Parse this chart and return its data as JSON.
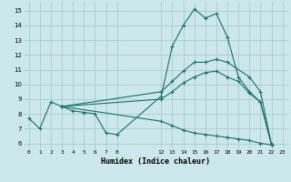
{
  "xlabel": "Humidex (Indice chaleur)",
  "background_color": "#cce8ec",
  "grid_color": "#aacccc",
  "line_color": "#1a706a",
  "xlim": [
    -0.5,
    23.5
  ],
  "ylim": [
    5.6,
    15.6
  ],
  "xticks": [
    0,
    1,
    2,
    3,
    4,
    5,
    6,
    7,
    8,
    12,
    13,
    14,
    15,
    16,
    17,
    18,
    19,
    20,
    21,
    22,
    23
  ],
  "yticks": [
    6,
    7,
    8,
    9,
    10,
    11,
    12,
    13,
    14,
    15
  ],
  "line1_x": [
    0,
    1,
    2,
    3,
    4,
    5,
    6,
    7,
    8,
    12,
    13,
    14,
    15,
    16,
    17,
    18,
    19,
    20,
    21,
    22
  ],
  "line1_y": [
    7.7,
    7.0,
    8.8,
    8.5,
    8.2,
    8.1,
    8.0,
    6.7,
    6.6,
    9.2,
    12.6,
    14.0,
    15.1,
    14.5,
    14.8,
    13.2,
    10.5,
    9.5,
    8.8,
    5.9
  ],
  "line2_x": [
    3,
    12,
    13,
    14,
    15,
    16,
    17,
    18,
    20,
    21,
    22
  ],
  "line2_y": [
    8.5,
    9.5,
    10.2,
    10.9,
    11.5,
    11.5,
    11.7,
    11.5,
    10.5,
    9.5,
    5.9
  ],
  "line3_x": [
    3,
    12,
    13,
    14,
    15,
    16,
    17,
    18,
    19,
    20,
    21,
    22
  ],
  "line3_y": [
    8.5,
    9.0,
    9.5,
    10.1,
    10.5,
    10.8,
    10.9,
    10.5,
    10.2,
    9.4,
    8.8,
    5.9
  ],
  "line4_x": [
    3,
    12,
    13,
    14,
    15,
    16,
    17,
    18,
    19,
    20,
    21,
    22
  ],
  "line4_y": [
    8.5,
    7.5,
    7.2,
    6.9,
    6.7,
    6.6,
    6.5,
    6.4,
    6.3,
    6.2,
    6.0,
    5.9
  ]
}
